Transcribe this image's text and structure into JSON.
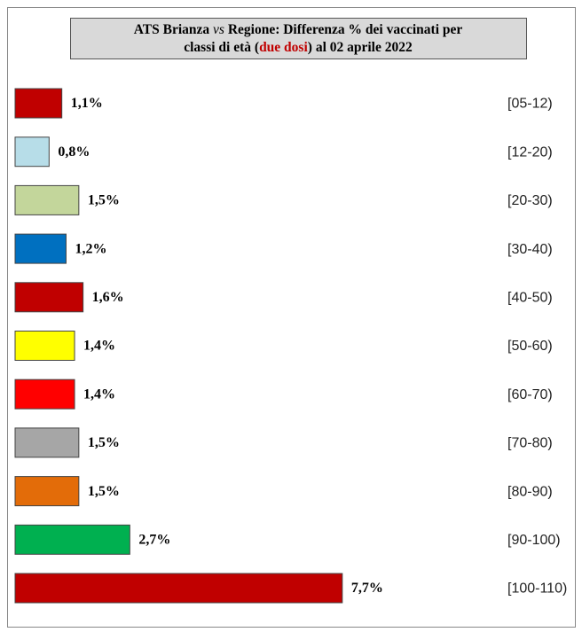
{
  "chart_data": {
    "type": "bar",
    "title": [
      [
        "ATS Brianza ",
        "vs",
        " Regione: Differenza % dei vaccinati per"
      ],
      [
        "classi di età (",
        "due dosi",
        ") al 02 aprile 2022"
      ]
    ],
    "categories": [
      "[05-12)",
      "[12-20)",
      "[20-30)",
      "[30-40)",
      "[40-50)",
      "[50-60)",
      "[60-70)",
      "[70-80)",
      "[80-90)",
      "[90-100)",
      "[100-110)"
    ],
    "values": [
      1.1,
      0.8,
      1.5,
      1.2,
      1.6,
      1.4,
      1.4,
      1.5,
      1.5,
      2.7,
      7.7
    ],
    "value_labels": [
      "1,1%",
      "0,8%",
      "1,5%",
      "1,2%",
      "1,6%",
      "1,4%",
      "1,4%",
      "1,5%",
      "1,5%",
      "2,7%",
      "7,7%"
    ],
    "colors": [
      "#c00000",
      "#b7dde8",
      "#c3d69b",
      "#0070c0",
      "#c00000",
      "#ffff00",
      "#ff0000",
      "#a6a6a6",
      "#e36c09",
      "#00b050",
      "#c00000"
    ]
  }
}
